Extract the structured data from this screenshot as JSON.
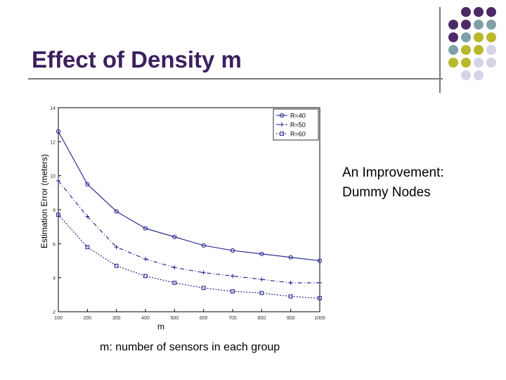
{
  "slide": {
    "title": "Effect of Density m",
    "side_text_line1": "An Improvement:",
    "side_text_line2": "Dummy Nodes",
    "caption": "m: number of sensors in each group"
  },
  "colors": {
    "title": "#3b1f5e",
    "dot_purple": "#4b2a66",
    "dot_teal": "#7fa0a6",
    "dot_olive": "#b8b82a",
    "dot_lavender": "#d4d4e6",
    "series": "#1a1a8c"
  },
  "chart_data": {
    "type": "line",
    "xlabel": "m",
    "ylabel": "Estimation Error (meters)",
    "xlim": [
      100,
      1000
    ],
    "ylim": [
      2,
      14
    ],
    "x": [
      100,
      200,
      300,
      400,
      500,
      600,
      700,
      800,
      900,
      1000
    ],
    "x_ticks": [
      "100",
      "200",
      "300",
      "400",
      "500",
      "600",
      "700",
      "800",
      "900",
      "1000"
    ],
    "y_ticks": [
      "2",
      "4",
      "6",
      "8",
      "10",
      "12",
      "14"
    ],
    "legend_position": "top-right",
    "series": [
      {
        "name": "R=40",
        "marker": "circle",
        "dash": "solid",
        "values": [
          12.6,
          9.5,
          7.9,
          6.9,
          6.4,
          5.9,
          5.6,
          5.4,
          5.2,
          5.0
        ]
      },
      {
        "name": "R=50",
        "marker": "plus",
        "dash": "dashdot",
        "values": [
          9.7,
          7.6,
          5.8,
          5.1,
          4.6,
          4.3,
          4.1,
          3.9,
          3.7,
          3.7
        ]
      },
      {
        "name": "R=60",
        "marker": "square",
        "dash": "dotted",
        "values": [
          7.7,
          5.8,
          4.7,
          4.1,
          3.7,
          3.4,
          3.2,
          3.1,
          2.9,
          2.8
        ]
      }
    ]
  }
}
